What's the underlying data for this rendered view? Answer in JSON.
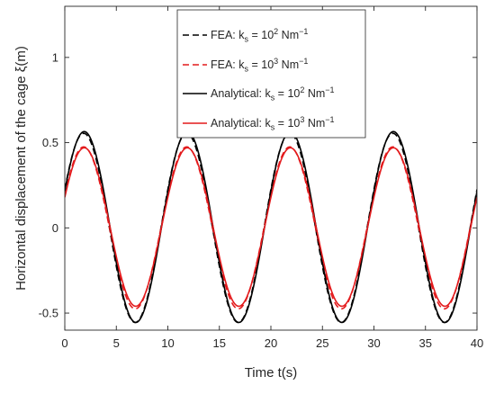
{
  "chart_data": {
    "type": "line",
    "xlabel": "Time t(s)",
    "ylabel": "Horizontal displacement of the cage   ξ(m)",
    "xlim": [
      0,
      40
    ],
    "ylim": [
      -0.6,
      1.3
    ],
    "xticks": [
      0,
      5,
      10,
      15,
      20,
      25,
      30,
      35,
      40
    ],
    "yticks": [
      -0.5,
      0,
      0.5,
      1
    ],
    "ytick_labels": [
      "-0.5",
      "0",
      "0.5",
      "1"
    ],
    "grid": false,
    "legend_position": "top-center",
    "period_s": 10,
    "series": [
      {
        "name_parts": [
          "FEA: k",
          "s",
          " = 10",
          "2",
          " Nm",
          "−1"
        ],
        "style": "dashed",
        "color": "#000000",
        "amplitude": 0.555,
        "phase_deg": 24,
        "offset": 0.0,
        "y_at_t0": 0.22
      },
      {
        "name_parts": [
          "FEA: k",
          "s",
          " = 10",
          "3",
          " Nm",
          "−1"
        ],
        "style": "dashed",
        "color": "#e31a1c",
        "amplitude": 0.475,
        "phase_deg": 24,
        "offset": 0.0,
        "y_at_t0": 0.19
      },
      {
        "name_parts": [
          "Analytical: k",
          "s",
          " = 10",
          "2",
          " Nm",
          "−1"
        ],
        "style": "solid",
        "color": "#000000",
        "amplitude": 0.56,
        "phase_deg": 22,
        "offset": 0.005,
        "y_at_t0": 0.22
      },
      {
        "name_parts": [
          "Analytical: k",
          "s",
          " = 10",
          "3",
          " Nm",
          "−1"
        ],
        "style": "solid",
        "color": "#e31a1c",
        "amplitude": 0.465,
        "phase_deg": 22,
        "offset": 0.005,
        "y_at_t0": 0.18
      }
    ]
  }
}
